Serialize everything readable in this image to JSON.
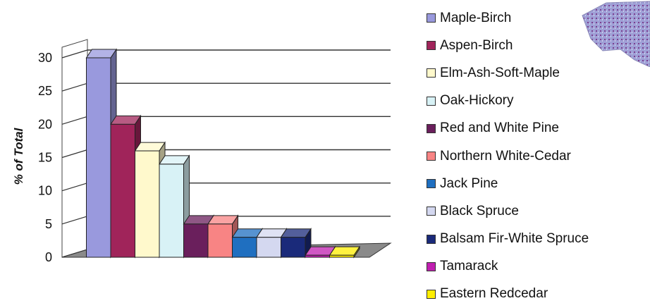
{
  "chart_data": {
    "type": "bar",
    "title": "",
    "xlabel": "",
    "ylabel": "% of Total",
    "ylim": [
      0,
      30
    ],
    "yticks": [
      0,
      5,
      10,
      15,
      20,
      25,
      30
    ],
    "grid": true,
    "legend_position": "right",
    "three_d": true,
    "categories": [
      "Maple-Birch",
      "Aspen-Birch",
      "Elm-Ash-Soft-Maple",
      "Oak-Hickory",
      "Red and White Pine",
      "Northern White-Cedar",
      "Jack Pine",
      "Black Spruce",
      "Balsam Fir-White Spruce",
      "Tamarack",
      "Eastern Redcedar"
    ],
    "values": [
      30,
      20,
      16,
      14,
      5,
      5,
      3,
      3,
      3,
      0.3,
      0.3
    ],
    "colors": [
      "#9999dd",
      "#a0245a",
      "#fff9cc",
      "#d8f2f6",
      "#6a1f5c",
      "#f88484",
      "#1f6fc0",
      "#d4d8f0",
      "#1a2a7a",
      "#c01fb0",
      "#ffee00"
    ]
  },
  "decor": {
    "thumbnail": "forest-type-map"
  }
}
